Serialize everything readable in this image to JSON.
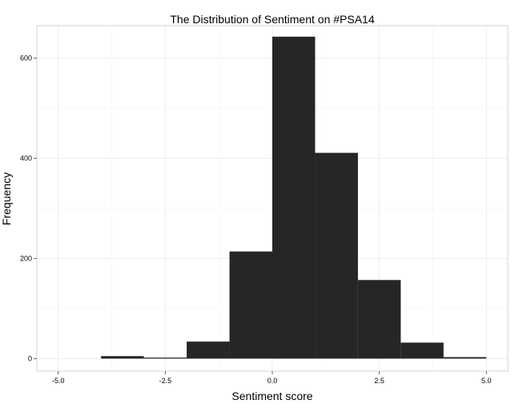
{
  "chart_data": {
    "type": "bar",
    "subtype": "histogram",
    "title": "The Distribution of Sentiment on #PSA14",
    "xlabel": "Sentiment score",
    "ylabel": "Frequency",
    "xlim": [
      -5.5,
      5.5
    ],
    "ylim": [
      -25,
      665
    ],
    "x_ticks": [
      -5.0,
      -2.5,
      0.0,
      2.5,
      5.0
    ],
    "x_tick_labels": [
      "-5.0",
      "-2.5",
      "0.0",
      "2.5",
      "5.0"
    ],
    "y_ticks": [
      0,
      200,
      400,
      600
    ],
    "y_tick_labels": [
      "0",
      "200",
      "400",
      "600"
    ],
    "grid": true,
    "bins": [
      {
        "x0": -4,
        "x1": -3,
        "count": 5
      },
      {
        "x0": -3,
        "x1": -2,
        "count": 2
      },
      {
        "x0": -2,
        "x1": -1,
        "count": 34
      },
      {
        "x0": -1,
        "x1": 0,
        "count": 214
      },
      {
        "x0": 0,
        "x1": 1,
        "count": 643
      },
      {
        "x0": 1,
        "x1": 2,
        "count": 411
      },
      {
        "x0": 2,
        "x1": 3,
        "count": 157
      },
      {
        "x0": 3,
        "x1": 4,
        "count": 32
      },
      {
        "x0": 4,
        "x1": 5,
        "count": 3
      }
    ],
    "bar_color": "#262626"
  }
}
